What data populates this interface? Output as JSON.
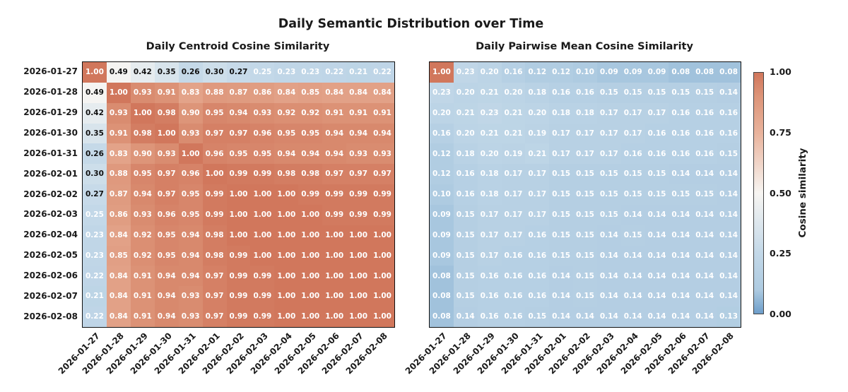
{
  "figure": {
    "title": "Daily Semantic Distribution over Time",
    "colorbar": {
      "label": "Cosine similarity",
      "ticks": [
        "1.00",
        "0.75",
        "0.50",
        "0.25",
        "0.00"
      ],
      "tick_values": [
        1.0,
        0.75,
        0.5,
        0.25,
        0.0
      ],
      "range": [
        0.0,
        1.0
      ],
      "colormap_stops": [
        [
          0.0,
          "#6d9eca"
        ],
        [
          0.1,
          "#aecbe1"
        ],
        [
          0.25,
          "#c3d8e8"
        ],
        [
          0.5,
          "#f7f5f2"
        ],
        [
          0.75,
          "#e9b39c"
        ],
        [
          0.9,
          "#dd9579"
        ],
        [
          1.0,
          "#d1775c"
        ]
      ],
      "annotation_text_colors": {
        "light_cells": "#111111",
        "dark_cells": "#ffffff"
      }
    }
  },
  "chart_data": [
    {
      "type": "heatmap",
      "title": "Daily Centroid Cosine Similarity",
      "x_labels": [
        "2026-01-27",
        "2026-01-28",
        "2026-01-29",
        "2026-01-30",
        "2026-01-31",
        "2026-02-01",
        "2026-02-02",
        "2026-02-03",
        "2026-02-04",
        "2026-02-05",
        "2026-02-06",
        "2026-02-07",
        "2026-02-08"
      ],
      "y_labels": [
        "2026-01-27",
        "2026-01-28",
        "2026-01-29",
        "2026-01-30",
        "2026-01-31",
        "2026-02-01",
        "2026-02-02",
        "2026-02-03",
        "2026-02-04",
        "2026-02-05",
        "2026-02-06",
        "2026-02-07",
        "2026-02-08"
      ],
      "vmin": 0.0,
      "vmax": 1.0,
      "values": [
        [
          1.0,
          0.49,
          0.42,
          0.35,
          0.26,
          0.3,
          0.27,
          0.25,
          0.23,
          0.23,
          0.22,
          0.21,
          0.22
        ],
        [
          0.49,
          1.0,
          0.93,
          0.91,
          0.83,
          0.88,
          0.87,
          0.86,
          0.84,
          0.85,
          0.84,
          0.84,
          0.84
        ],
        [
          0.42,
          0.93,
          1.0,
          0.98,
          0.9,
          0.95,
          0.94,
          0.93,
          0.92,
          0.92,
          0.91,
          0.91,
          0.91
        ],
        [
          0.35,
          0.91,
          0.98,
          1.0,
          0.93,
          0.97,
          0.97,
          0.96,
          0.95,
          0.95,
          0.94,
          0.94,
          0.94
        ],
        [
          0.26,
          0.83,
          0.9,
          0.93,
          1.0,
          0.96,
          0.95,
          0.95,
          0.94,
          0.94,
          0.94,
          0.93,
          0.93
        ],
        [
          0.3,
          0.88,
          0.95,
          0.97,
          0.96,
          1.0,
          0.99,
          0.99,
          0.98,
          0.98,
          0.97,
          0.97,
          0.97
        ],
        [
          0.27,
          0.87,
          0.94,
          0.97,
          0.95,
          0.99,
          1.0,
          1.0,
          1.0,
          0.99,
          0.99,
          0.99,
          0.99
        ],
        [
          0.25,
          0.86,
          0.93,
          0.96,
          0.95,
          0.99,
          1.0,
          1.0,
          1.0,
          1.0,
          0.99,
          0.99,
          0.99
        ],
        [
          0.23,
          0.84,
          0.92,
          0.95,
          0.94,
          0.98,
          1.0,
          1.0,
          1.0,
          1.0,
          1.0,
          1.0,
          1.0
        ],
        [
          0.23,
          0.85,
          0.92,
          0.95,
          0.94,
          0.98,
          0.99,
          1.0,
          1.0,
          1.0,
          1.0,
          1.0,
          1.0
        ],
        [
          0.22,
          0.84,
          0.91,
          0.94,
          0.94,
          0.97,
          0.99,
          0.99,
          1.0,
          1.0,
          1.0,
          1.0,
          1.0
        ],
        [
          0.21,
          0.84,
          0.91,
          0.94,
          0.93,
          0.97,
          0.99,
          0.99,
          1.0,
          1.0,
          1.0,
          1.0,
          1.0
        ],
        [
          0.22,
          0.84,
          0.91,
          0.94,
          0.93,
          0.97,
          0.99,
          0.99,
          1.0,
          1.0,
          1.0,
          1.0,
          1.0
        ]
      ]
    },
    {
      "type": "heatmap",
      "title": "Daily Pairwise Mean Cosine Similarity",
      "x_labels": [
        "2026-01-27",
        "2026-01-28",
        "2026-01-29",
        "2026-01-30",
        "2026-01-31",
        "2026-02-01",
        "2026-02-02",
        "2026-02-03",
        "2026-02-04",
        "2026-02-05",
        "2026-02-06",
        "2026-02-07",
        "2026-02-08"
      ],
      "y_labels": [
        "2026-01-27",
        "2026-01-28",
        "2026-01-29",
        "2026-01-30",
        "2026-01-31",
        "2026-02-01",
        "2026-02-02",
        "2026-02-03",
        "2026-02-04",
        "2026-02-05",
        "2026-02-06",
        "2026-02-07",
        "2026-02-08"
      ],
      "vmin": 0.0,
      "vmax": 1.0,
      "values": [
        [
          1.0,
          0.23,
          0.2,
          0.16,
          0.12,
          0.12,
          0.1,
          0.09,
          0.09,
          0.09,
          0.08,
          0.08,
          0.08
        ],
        [
          0.23,
          0.2,
          0.21,
          0.2,
          0.18,
          0.16,
          0.16,
          0.15,
          0.15,
          0.15,
          0.15,
          0.15,
          0.14
        ],
        [
          0.2,
          0.21,
          0.23,
          0.21,
          0.2,
          0.18,
          0.18,
          0.17,
          0.17,
          0.17,
          0.16,
          0.16,
          0.16
        ],
        [
          0.16,
          0.2,
          0.21,
          0.21,
          0.19,
          0.17,
          0.17,
          0.17,
          0.17,
          0.16,
          0.16,
          0.16,
          0.16
        ],
        [
          0.12,
          0.18,
          0.2,
          0.19,
          0.21,
          0.17,
          0.17,
          0.17,
          0.16,
          0.16,
          0.16,
          0.16,
          0.15
        ],
        [
          0.12,
          0.16,
          0.18,
          0.17,
          0.17,
          0.15,
          0.15,
          0.15,
          0.15,
          0.15,
          0.14,
          0.14,
          0.14
        ],
        [
          0.1,
          0.16,
          0.18,
          0.17,
          0.17,
          0.15,
          0.15,
          0.15,
          0.15,
          0.15,
          0.15,
          0.15,
          0.14
        ],
        [
          0.09,
          0.15,
          0.17,
          0.17,
          0.17,
          0.15,
          0.15,
          0.15,
          0.14,
          0.14,
          0.14,
          0.14,
          0.14
        ],
        [
          0.09,
          0.15,
          0.17,
          0.17,
          0.16,
          0.15,
          0.15,
          0.14,
          0.15,
          0.14,
          0.14,
          0.14,
          0.14
        ],
        [
          0.09,
          0.15,
          0.17,
          0.16,
          0.16,
          0.15,
          0.15,
          0.14,
          0.14,
          0.14,
          0.14,
          0.14,
          0.14
        ],
        [
          0.08,
          0.15,
          0.16,
          0.16,
          0.16,
          0.14,
          0.15,
          0.14,
          0.14,
          0.14,
          0.14,
          0.14,
          0.14
        ],
        [
          0.08,
          0.15,
          0.16,
          0.16,
          0.16,
          0.14,
          0.15,
          0.14,
          0.14,
          0.14,
          0.14,
          0.14,
          0.14
        ],
        [
          0.08,
          0.14,
          0.16,
          0.16,
          0.15,
          0.14,
          0.14,
          0.14,
          0.14,
          0.14,
          0.14,
          0.14,
          0.13
        ]
      ]
    }
  ]
}
